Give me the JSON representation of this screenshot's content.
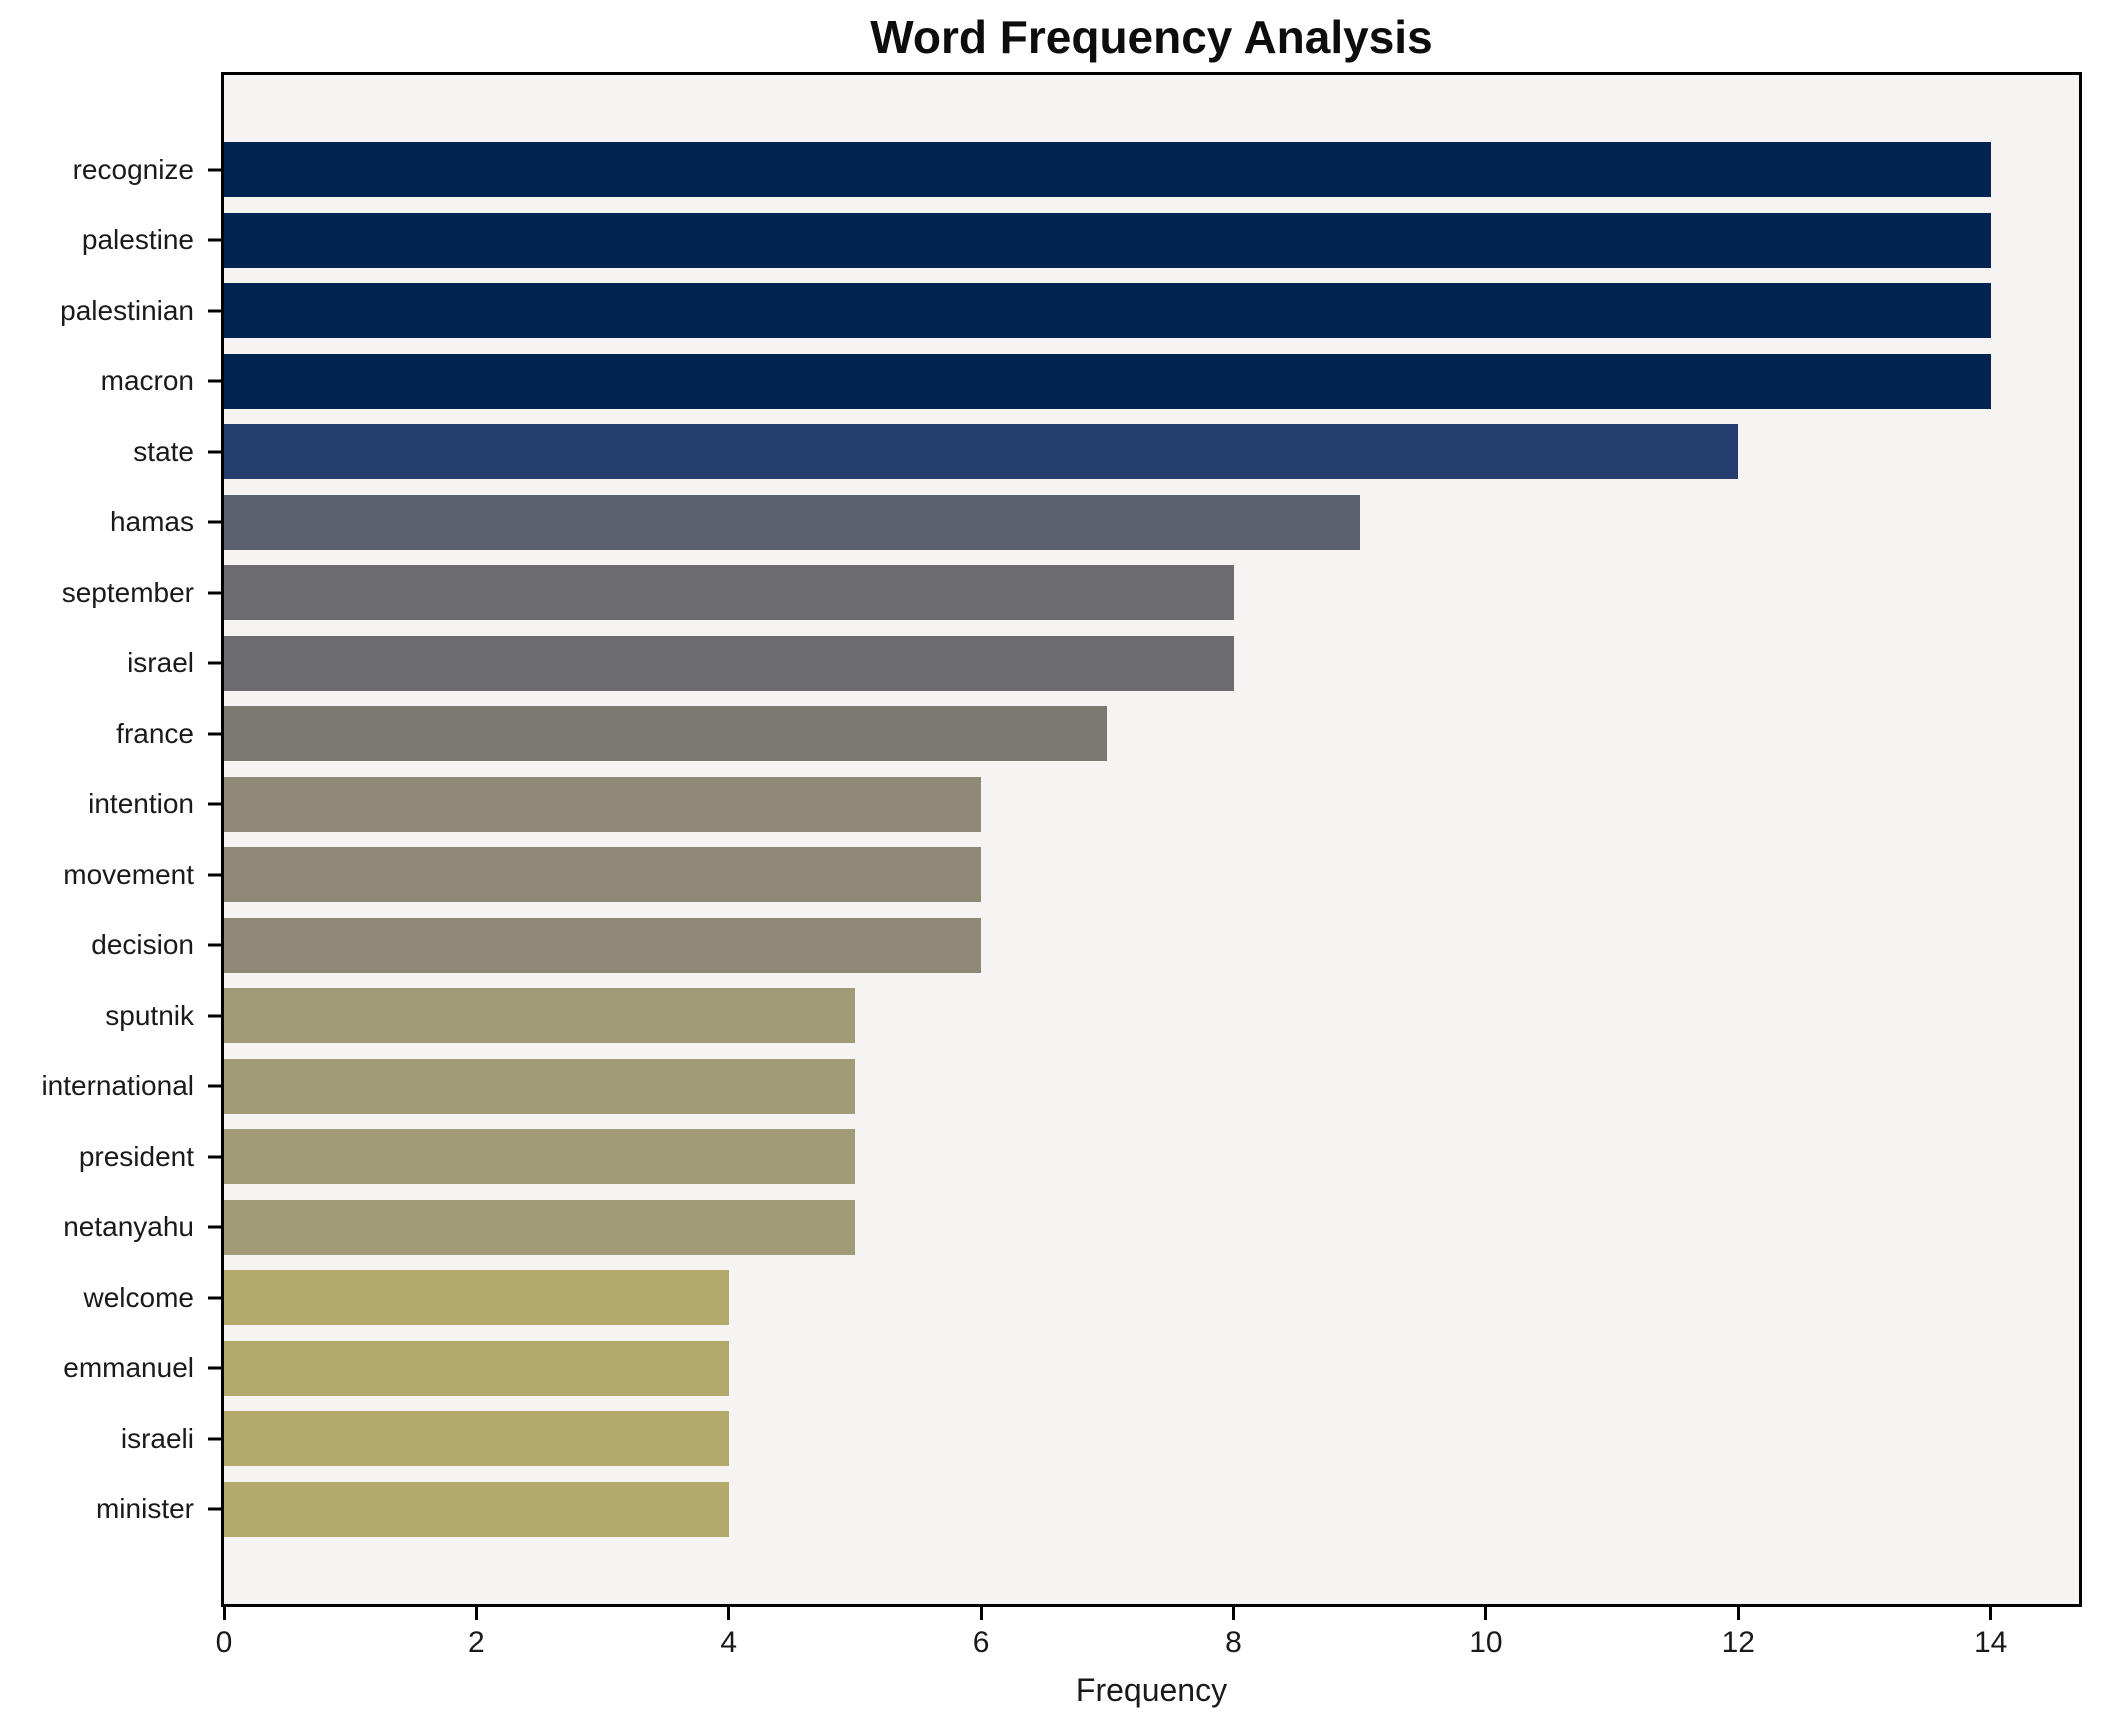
{
  "chart_data": {
    "type": "bar",
    "orientation": "horizontal",
    "title": "Word Frequency Analysis",
    "xlabel": "Frequency",
    "ylabel": "",
    "categories": [
      "recognize",
      "palestine",
      "palestinian",
      "macron",
      "state",
      "hamas",
      "september",
      "israel",
      "france",
      "intention",
      "movement",
      "decision",
      "sputnik",
      "international",
      "president",
      "netanyahu",
      "welcome",
      "emmanuel",
      "israeli",
      "minister"
    ],
    "values": [
      14,
      14,
      14,
      14,
      12,
      9,
      8,
      8,
      7,
      6,
      6,
      6,
      5,
      5,
      5,
      5,
      4,
      4,
      4,
      4
    ],
    "bar_colors": [
      "#032350",
      "#032350",
      "#032350",
      "#032350",
      "#243d6e",
      "#5b606e",
      "#6c6c70",
      "#6c6c70",
      "#7b7970",
      "#8e8877",
      "#8e8877",
      "#8e8877",
      "#a09a76",
      "#a09a76",
      "#a09a76",
      "#a09a76",
      "#b3a96c",
      "#b3a96c",
      "#b3a96c",
      "#b3a96c"
    ],
    "xlim": [
      0,
      14.7
    ],
    "xticks": [
      0,
      2,
      4,
      6,
      8,
      10,
      12,
      14
    ],
    "grid": false,
    "legend_position": "none",
    "plot_background": "#f5f4f2",
    "figure_background": "#ffffff",
    "bar_height_fraction": 0.78
  }
}
